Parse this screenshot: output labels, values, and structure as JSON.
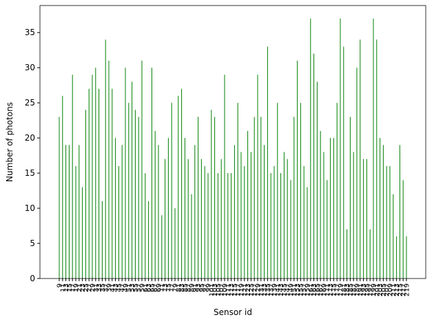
{
  "chart_data": {
    "type": "bar",
    "x_label": "Sensor id",
    "y_label": "Number of photons",
    "categories": [
      "9",
      "11",
      "13",
      "15",
      "17",
      "19",
      "21",
      "23",
      "25",
      "27",
      "29",
      "31",
      "33",
      "35",
      "37",
      "39",
      "41",
      "43",
      "45",
      "47",
      "49",
      "51",
      "53",
      "55",
      "57",
      "59",
      "61",
      "63",
      "65",
      "67",
      "69",
      "71",
      "73",
      "75",
      "77",
      "79",
      "81",
      "83",
      "85",
      "87",
      "89",
      "91",
      "93",
      "95",
      "97",
      "99",
      "101",
      "103",
      "105",
      "107",
      "109",
      "111",
      "113",
      "115",
      "117",
      "119",
      "121",
      "123",
      "125",
      "127",
      "129",
      "131",
      "133",
      "135",
      "137",
      "139",
      "141",
      "143",
      "145",
      "147",
      "149",
      "151",
      "153",
      "155",
      "157",
      "159",
      "161",
      "163",
      "165",
      "167",
      "169",
      "171",
      "173",
      "175",
      "177",
      "179",
      "181",
      "183",
      "185",
      "187",
      "189",
      "191",
      "193",
      "195",
      "197",
      "199",
      "201",
      "203",
      "205",
      "207",
      "209",
      "211",
      "213",
      "215",
      "217",
      "219"
    ],
    "values": [
      23,
      26,
      19,
      19,
      29,
      16,
      19,
      13,
      24,
      27,
      29,
      30,
      27,
      11,
      34,
      31,
      27,
      20,
      16,
      19,
      30,
      25,
      28,
      24,
      23,
      31,
      15,
      11,
      30,
      21,
      19,
      9,
      17,
      20,
      25,
      10,
      26,
      27,
      20,
      17,
      12,
      19,
      23,
      17,
      16,
      15,
      24,
      23,
      15,
      17,
      29,
      15,
      15,
      19,
      25,
      18,
      16,
      21,
      18,
      23,
      29,
      23,
      19,
      33,
      15,
      16,
      25,
      15,
      18,
      17,
      14,
      23,
      31,
      25,
      16,
      13,
      37,
      32,
      28,
      21,
      18,
      14,
      20,
      20,
      25,
      37,
      33,
      7,
      23,
      18,
      30,
      34,
      17,
      17,
      7,
      37,
      34,
      20,
      19,
      16,
      16,
      12,
      6,
      19,
      14,
      6
    ],
    "color": "green",
    "ylim": [
      0,
      38.85
    ],
    "yticks": [
      0,
      5,
      10,
      15,
      20,
      25,
      30,
      35
    ]
  }
}
